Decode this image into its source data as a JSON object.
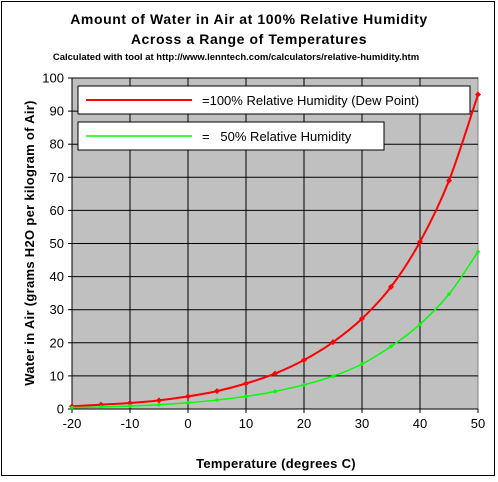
{
  "chart_data": {
    "type": "line",
    "title_line1": "Amount of Water in Air at 100% Relative Humidity",
    "title_line2": "Across a Range of Temperatures",
    "subtitle": "Calculated with tool at http://www.lenntech.com/calculators/relative-humidity.htm",
    "xlabel": "Temperature (degrees C)",
    "ylabel": "Water in Air (grams H2O per kilogram of Air)",
    "xlim": [
      -20,
      50
    ],
    "ylim": [
      0,
      100
    ],
    "xticks": [
      -20,
      -10,
      0,
      10,
      20,
      30,
      40,
      50
    ],
    "yticks": [
      0,
      10,
      20,
      30,
      40,
      50,
      60,
      70,
      80,
      90,
      100
    ],
    "grid": true,
    "legend_position": "top-left",
    "plot_background": "#c0c0c0",
    "x": [
      -20,
      -15,
      -10,
      -5,
      0,
      5,
      10,
      15,
      20,
      25,
      30,
      35,
      40,
      45,
      50
    ],
    "series": [
      {
        "name": "=100% Relative Humidity (Dew Point)",
        "color": "#ff0000",
        "marker": "diamond",
        "values": [
          0.8,
          1.3,
          1.8,
          2.6,
          3.8,
          5.4,
          7.7,
          10.7,
          14.8,
          20.2,
          27.3,
          36.9,
          50.5,
          69.0,
          95.0
        ]
      },
      {
        "name": "=   50% Relative Humidity",
        "color": "#00ff00",
        "marker": "dot",
        "values": [
          0.4,
          0.6,
          0.9,
          1.3,
          1.9,
          2.7,
          3.8,
          5.3,
          7.3,
          9.9,
          13.6,
          18.9,
          25.6,
          34.7,
          47.5
        ]
      }
    ]
  }
}
